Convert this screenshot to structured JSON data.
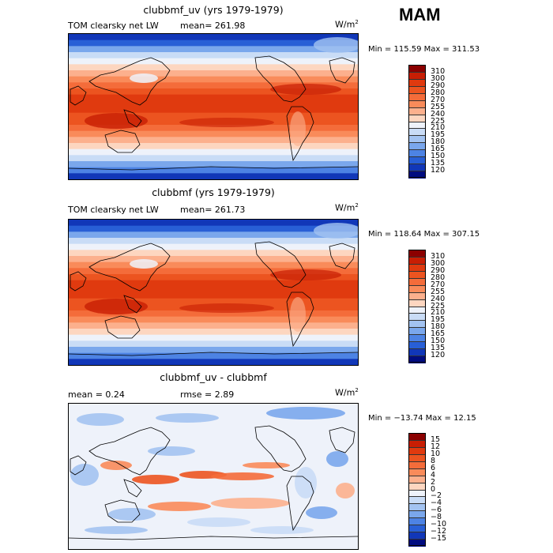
{
  "season": "MAM",
  "panels": [
    {
      "title": "clubbmf_uv (yrs 1979-1979)",
      "field": "TOM clearsky net LW",
      "stat": "mean=  261.98",
      "units_base": "W/m",
      "units_exp": "2",
      "minmax": "Min = 115.59 Max = 311.53"
    },
    {
      "title": "clubbmf (yrs 1979-1979)",
      "field": "TOM clearsky net LW",
      "stat": "mean=  261.73",
      "units_base": "W/m",
      "units_exp": "2",
      "minmax": "Min = 118.64 Max = 307.15"
    },
    {
      "title": "clubbmf_uv - clubbmf",
      "field": "mean =    0.24",
      "stat": "rmse =    2.89",
      "units_base": "W/m",
      "units_exp": "2",
      "minmax": "Min = −13.74 Max =   12.15"
    }
  ],
  "chart_data": [
    {
      "type": "heatmap",
      "title": "clubbmf_uv (yrs 1979-1979)",
      "subtitle": "TOM clearsky net LW",
      "units": "W/m^2",
      "mean": 261.98,
      "min": 115.59,
      "max": 311.53,
      "levels": [
        "310",
        "300",
        "290",
        "280",
        "270",
        "255",
        "240",
        "225",
        "210",
        "195",
        "180",
        "165",
        "150",
        "135",
        "120"
      ],
      "colors": [
        "#8b0000",
        "#c81e04",
        "#e03a0f",
        "#ec5420",
        "#f46c3a",
        "#f98b5a",
        "#fcb08d",
        "#fdd6c0",
        "#eef2fa",
        "#c9dcf6",
        "#a3c3f1",
        "#7aa7ec",
        "#4d83e4",
        "#285fd6",
        "#1137b8",
        "#000c80"
      ]
    },
    {
      "type": "heatmap",
      "title": "clubbmf (yrs 1979-1979)",
      "subtitle": "TOM clearsky net LW",
      "units": "W/m^2",
      "mean": 261.73,
      "min": 118.64,
      "max": 307.15,
      "levels": [
        "310",
        "300",
        "290",
        "280",
        "270",
        "255",
        "240",
        "225",
        "210",
        "195",
        "180",
        "165",
        "150",
        "135",
        "120"
      ],
      "colors": [
        "#8b0000",
        "#c81e04",
        "#e03a0f",
        "#ec5420",
        "#f46c3a",
        "#f98b5a",
        "#fcb08d",
        "#fdd6c0",
        "#eef2fa",
        "#c9dcf6",
        "#a3c3f1",
        "#7aa7ec",
        "#4d83e4",
        "#285fd6",
        "#1137b8",
        "#000c80"
      ]
    },
    {
      "type": "heatmap",
      "title": "clubbmf_uv - clubbmf",
      "units": "W/m^2",
      "mean": 0.24,
      "rmse": 2.89,
      "min": -13.74,
      "max": 12.15,
      "levels": [
        "15",
        "12",
        "10",
        "8",
        "6",
        "4",
        "2",
        "0",
        "−2",
        "−4",
        "−6",
        "−8",
        "−10",
        "−12",
        "−15"
      ],
      "colors": [
        "#8b0000",
        "#c81e04",
        "#e03a0f",
        "#ec5420",
        "#f46c3a",
        "#f98b5a",
        "#fcb08d",
        "#fdd6c0",
        "#eef2fa",
        "#c9dcf6",
        "#a3c3f1",
        "#7aa7ec",
        "#4d83e4",
        "#285fd6",
        "#1137b8",
        "#000c80"
      ]
    }
  ]
}
